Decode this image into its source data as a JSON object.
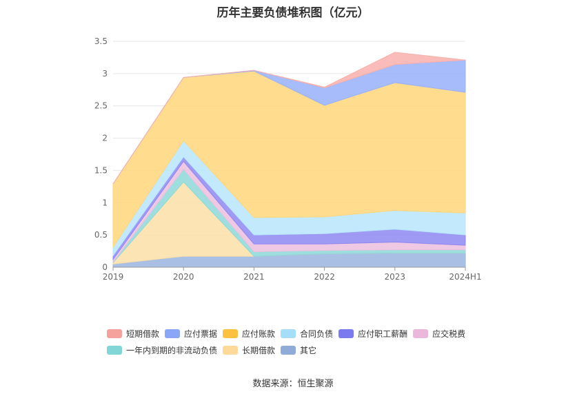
{
  "chart_data": {
    "type": "area",
    "title": "历年主要负债堆积图（亿元）",
    "source": "数据来源：恒生聚源",
    "x": [
      "2019",
      "2020",
      "2021",
      "2022",
      "2023",
      "2024H1"
    ],
    "ylim": [
      0,
      3.5
    ],
    "yticks": [
      "0",
      "0.5",
      "1",
      "1.5",
      "2",
      "2.5",
      "3",
      "3.5"
    ],
    "stacked": true,
    "grid": true,
    "legend_position": "bottom",
    "series": [
      {
        "name": "其它",
        "color": "#9AB4DE",
        "values": [
          0.05,
          0.17,
          0.17,
          0.21,
          0.22,
          0.22
        ]
      },
      {
        "name": "长期借款",
        "color": "#FDDFA8",
        "values": [
          0.02,
          1.15,
          0.0,
          0.0,
          0.0,
          0.0
        ]
      },
      {
        "name": "一年内到期的非流动负债",
        "color": "#8ED8D8",
        "values": [
          0.01,
          0.2,
          0.07,
          0.05,
          0.05,
          0.05
        ]
      },
      {
        "name": "应交税费",
        "color": "#ECC0DE",
        "values": [
          0.04,
          0.12,
          0.12,
          0.1,
          0.12,
          0.07
        ]
      },
      {
        "name": "应付职工薪酬",
        "color": "#8E88F2",
        "values": [
          0.06,
          0.07,
          0.14,
          0.16,
          0.2,
          0.16
        ]
      },
      {
        "name": "合同负债",
        "color": "#B8E6FB",
        "values": [
          0.13,
          0.25,
          0.27,
          0.26,
          0.29,
          0.34
        ]
      },
      {
        "name": "应付账款",
        "color": "#FFD67A",
        "values": [
          0.98,
          0.98,
          2.27,
          1.73,
          1.98,
          1.87
        ]
      },
      {
        "name": "应付票据",
        "color": "#98B0FA",
        "values": [
          0.0,
          0.0,
          0.01,
          0.27,
          0.28,
          0.5
        ]
      },
      {
        "name": "短期借款",
        "color": "#F9B0AC",
        "values": [
          0.0,
          0.0,
          0.0,
          0.01,
          0.19,
          0.0
        ]
      }
    ],
    "legend": [
      {
        "name": "短期借款",
        "color": "#F6A29C"
      },
      {
        "name": "应付票据",
        "color": "#8BA6F6"
      },
      {
        "name": "应付账款",
        "color": "#FCC23F"
      },
      {
        "name": "合同负债",
        "color": "#A6DDF8"
      },
      {
        "name": "应付职工薪酬",
        "color": "#7B7BEF"
      },
      {
        "name": "应交税费",
        "color": "#EBB8DC"
      },
      {
        "name": "一年内到期的非流动负债",
        "color": "#83D6D6"
      },
      {
        "name": "长期借款",
        "color": "#FDD99A"
      },
      {
        "name": "其它",
        "color": "#8FACD8"
      }
    ]
  }
}
